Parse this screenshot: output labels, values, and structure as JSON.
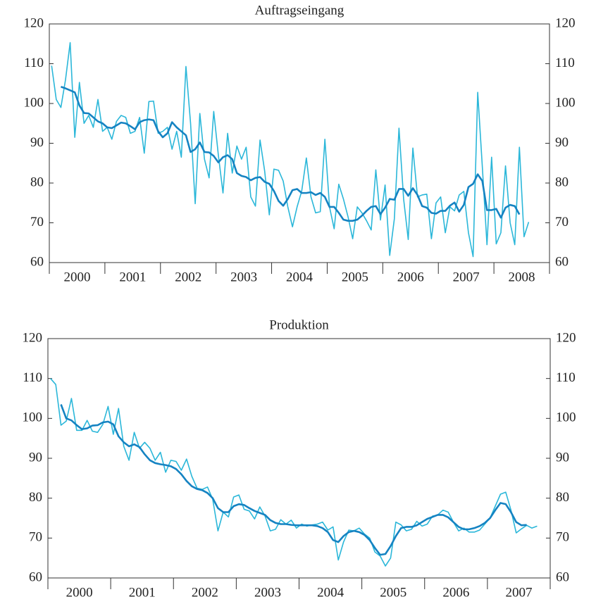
{
  "chart_data": [
    {
      "type": "line",
      "title": "Auftragseingang",
      "categories": [
        null,
        null,
        null,
        null,
        null,
        null,
        "2000",
        null,
        null,
        null,
        null,
        null,
        null,
        null,
        null,
        null,
        null,
        null,
        "2001",
        null,
        null,
        null,
        null,
        null,
        null,
        null,
        null,
        null,
        null,
        null,
        "2002",
        null,
        null,
        null,
        null,
        null,
        null,
        null,
        null,
        null,
        null,
        null,
        "2003",
        null,
        null,
        null,
        null,
        null,
        null,
        null,
        null,
        null,
        null,
        null,
        "2004",
        null,
        null,
        null,
        null,
        null,
        null,
        null,
        null,
        null,
        null,
        null,
        "2005",
        null,
        null,
        null,
        null,
        null,
        null,
        null,
        null,
        null,
        null,
        null,
        "2006",
        null,
        null,
        null,
        null,
        null,
        null,
        null,
        null,
        null,
        null,
        null,
        "2007",
        null,
        null,
        null,
        null,
        null,
        null,
        null,
        null,
        null,
        null,
        null,
        "2008",
        null,
        null,
        null,
        null,
        null
      ],
      "ylim": [
        60,
        120
      ],
      "yticks": [
        60,
        70,
        80,
        90,
        100,
        110,
        120
      ],
      "series": [
        {
          "color": "#2bb7d9",
          "values": [
            109.5,
            101,
            99,
            106,
            115.3,
            91.5,
            105.3,
            95,
            97,
            94,
            101,
            93,
            94,
            91,
            95.5,
            97,
            96.5,
            92.5,
            93,
            96.5,
            87.5,
            100.5,
            100.6,
            92.5,
            93,
            94,
            88.5,
            93,
            86.5,
            109.3,
            95,
            74.8,
            97.5,
            86,
            81.3,
            98,
            87,
            77.5,
            92.5,
            82.5,
            89.3,
            86,
            89,
            76.5,
            74.2,
            90.8,
            83,
            72,
            83.5,
            83.2,
            80.5,
            74,
            69,
            74,
            78,
            86.3,
            76.5,
            72.5,
            72.8,
            91,
            74,
            68.5,
            79.7,
            76,
            71.5,
            66,
            74,
            72.5,
            70.5,
            68.2,
            83.3,
            70.7,
            79.5,
            61.8,
            71,
            93.8,
            76,
            65.8,
            88.8,
            76.5,
            77,
            77.2,
            66,
            75,
            76.5,
            67.5,
            74,
            73,
            77,
            77.9,
            67.5,
            61.5,
            102.8,
            84,
            64.5,
            86.5,
            64.7,
            67.5,
            84.3,
            70,
            64.5,
            89,
            66.5,
            70.2,
            null,
            null,
            null,
            null
          ]
        },
        {
          "color": "#1583c2",
          "values": [
            null,
            null,
            104.2,
            103.8,
            103.3,
            102.8,
            99.5,
            97.6,
            97.5,
            96.5,
            95.5,
            95,
            94,
            93.8,
            94.5,
            95.2,
            95,
            94.3,
            93.5,
            95.3,
            95.8,
            96,
            95.8,
            93,
            91.5,
            92.5,
            95.3,
            94,
            93,
            92,
            87.8,
            88.5,
            90.2,
            87.8,
            87.7,
            86.8,
            85.2,
            86.5,
            87,
            86,
            82.5,
            81.8,
            81.5,
            80.7,
            81.3,
            81.5,
            80.3,
            79.8,
            78,
            75.5,
            74.3,
            76,
            78.2,
            78.5,
            77.5,
            77.5,
            77.7,
            77,
            77.5,
            76.5,
            74,
            74,
            72.5,
            70.8,
            70.5,
            70.5,
            70.8,
            71.8,
            73,
            74,
            74.2,
            72.2,
            73.8,
            76,
            75.8,
            78.5,
            78.5,
            76.8,
            78.7,
            77,
            74.2,
            73.8,
            72.5,
            72.3,
            73,
            73,
            74.3,
            75.1,
            72.8,
            74.5,
            79,
            79.8,
            82.2,
            80.5,
            73.2,
            73.2,
            73.5,
            71.3,
            73.8,
            74.5,
            74.2,
            72.1,
            null,
            null,
            null,
            null,
            null,
            null
          ]
        }
      ]
    },
    {
      "type": "line",
      "title": "Produktion",
      "categories": [
        null,
        null,
        null,
        null,
        null,
        null,
        "2000",
        null,
        null,
        null,
        null,
        null,
        null,
        null,
        null,
        null,
        null,
        null,
        "2001",
        null,
        null,
        null,
        null,
        null,
        null,
        null,
        null,
        null,
        null,
        null,
        "2002",
        null,
        null,
        null,
        null,
        null,
        null,
        null,
        null,
        null,
        null,
        null,
        "2003",
        null,
        null,
        null,
        null,
        null,
        null,
        null,
        null,
        null,
        null,
        null,
        "2004",
        null,
        null,
        null,
        null,
        null,
        null,
        null,
        null,
        null,
        null,
        null,
        "2005",
        null,
        null,
        null,
        null,
        null,
        null,
        null,
        null,
        null,
        null,
        null,
        "2006",
        null,
        null,
        null,
        null,
        null,
        null,
        null,
        null,
        null,
        null,
        null,
        "2007",
        null,
        null,
        null,
        null,
        null
      ],
      "ylim": [
        60,
        120
      ],
      "yticks": [
        60,
        70,
        80,
        90,
        100,
        110,
        120
      ],
      "series": [
        {
          "color": "#2bb7d9",
          "values": [
            110,
            108.5,
            98.3,
            99.3,
            105,
            97,
            97,
            99.5,
            96.8,
            96.5,
            98.5,
            103,
            96,
            102.5,
            93,
            89.5,
            96.5,
            92.5,
            94,
            92.5,
            89.5,
            91.5,
            86.5,
            89.5,
            89.2,
            87,
            89.8,
            85.5,
            82.5,
            82.2,
            82.8,
            79.7,
            71.8,
            76.5,
            75.3,
            80.3,
            80.8,
            77.2,
            76.8,
            74.8,
            77.8,
            75.5,
            71.8,
            72.2,
            74.6,
            73.5,
            74.5,
            72.5,
            73.5,
            73,
            73.3,
            73.5,
            74,
            72,
            72.8,
            64.5,
            69,
            72,
            71.8,
            72.5,
            71,
            70,
            66.5,
            65.5,
            63,
            65,
            74,
            73.3,
            71.8,
            72.2,
            74.2,
            73,
            73.5,
            75.5,
            75.8,
            77,
            76.5,
            74,
            71.8,
            72.5,
            71.5,
            71.5,
            72,
            73.5,
            75,
            78,
            81,
            81.5,
            77,
            71.3,
            72.3,
            73.2,
            72.5,
            73,
            null,
            null
          ]
        },
        {
          "color": "#1583c2",
          "values": [
            null,
            null,
            103.5,
            100,
            99.5,
            98.3,
            97.3,
            97.5,
            98.2,
            98.3,
            99,
            99.2,
            98.5,
            95.5,
            94,
            93,
            93.5,
            92.8,
            91,
            89.5,
            88.8,
            88.5,
            88.3,
            88,
            87.3,
            86,
            84.3,
            83,
            82.3,
            82,
            81.3,
            80,
            77.5,
            76.5,
            76.5,
            78,
            78.5,
            78.3,
            77.5,
            76.8,
            76.3,
            75.8,
            74.5,
            73.8,
            73.5,
            73.5,
            73.3,
            73.2,
            73.2,
            73.2,
            73.2,
            73,
            72.5,
            71.5,
            69.5,
            69,
            70.5,
            71.5,
            71.8,
            71.5,
            70.8,
            69.5,
            67.5,
            65.8,
            66,
            68,
            70.5,
            72.5,
            72.8,
            72.8,
            73.2,
            74,
            74.8,
            75.3,
            75.8,
            75.8,
            75.2,
            74,
            72.8,
            72.2,
            72.2,
            72.5,
            73,
            73.8,
            75,
            77,
            78.8,
            78.5,
            76.5,
            74,
            73.2,
            73.3,
            null,
            null,
            null,
            null
          ]
        }
      ]
    }
  ]
}
